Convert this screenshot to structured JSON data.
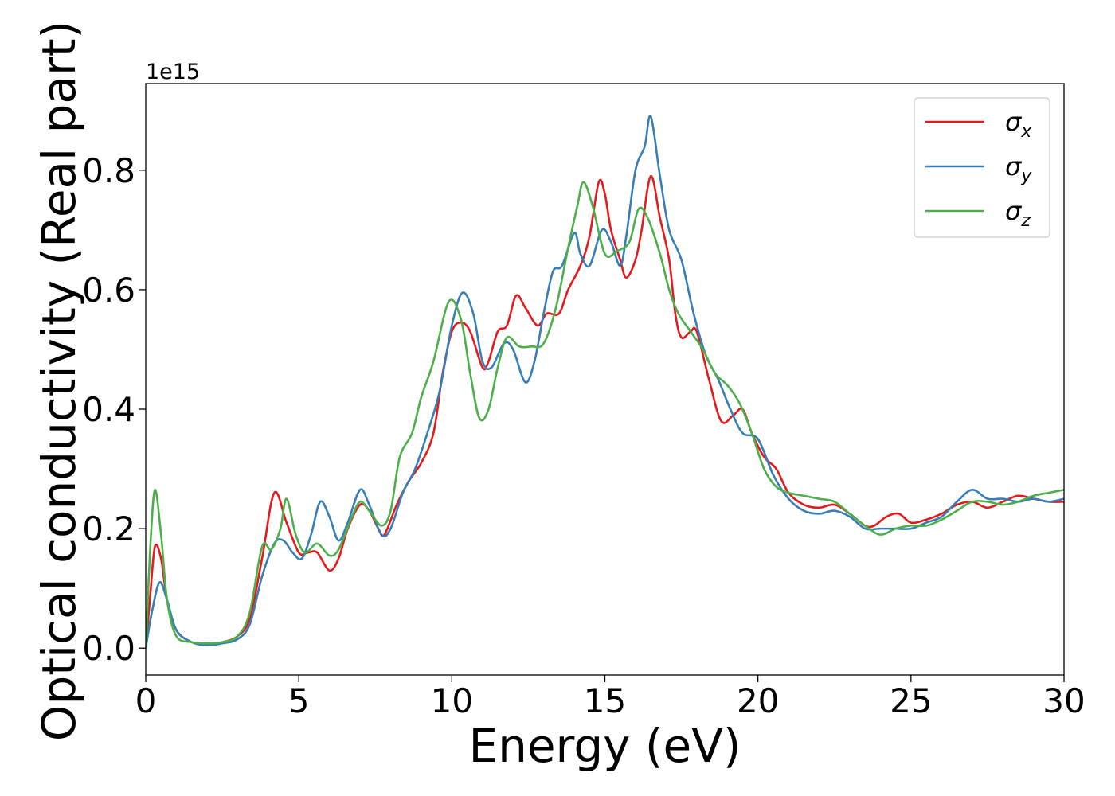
{
  "chart_data": {
    "type": "line",
    "xlabel": "Energy (eV)",
    "ylabel": "Optical conductivity (Real part)",
    "y_offset_label": "1e15",
    "xlim": [
      0,
      30
    ],
    "ylim": [
      -0.045,
      0.945
    ],
    "x_ticks": [
      0,
      5,
      10,
      15,
      20,
      25,
      30
    ],
    "x_tick_labels": [
      "0",
      "5",
      "10",
      "15",
      "20",
      "25",
      "30"
    ],
    "y_ticks": [
      0.0,
      0.2,
      0.4,
      0.6,
      0.8
    ],
    "y_tick_labels": [
      "0.0",
      "0.2",
      "0.4",
      "0.6",
      "0.8"
    ],
    "grid": false,
    "legend_position": "top-right",
    "series": [
      {
        "name": "σ",
        "subscript": "x",
        "color": "#e41a1c",
        "points": [
          [
            0,
            0.0
          ],
          [
            0.15,
            0.09
          ],
          [
            0.3,
            0.17
          ],
          [
            0.5,
            0.15
          ],
          [
            0.7,
            0.08
          ],
          [
            1.0,
            0.03
          ],
          [
            1.5,
            0.01
          ],
          [
            2.0,
            0.007
          ],
          [
            2.5,
            0.01
          ],
          [
            3.0,
            0.02
          ],
          [
            3.4,
            0.05
          ],
          [
            3.8,
            0.15
          ],
          [
            4.2,
            0.26
          ],
          [
            4.6,
            0.21
          ],
          [
            5.0,
            0.16
          ],
          [
            5.3,
            0.16
          ],
          [
            5.6,
            0.16
          ],
          [
            6.0,
            0.13
          ],
          [
            6.3,
            0.15
          ],
          [
            6.6,
            0.2
          ],
          [
            7.0,
            0.24
          ],
          [
            7.3,
            0.23
          ],
          [
            7.6,
            0.2
          ],
          [
            7.8,
            0.19
          ],
          [
            8.2,
            0.24
          ],
          [
            8.6,
            0.28
          ],
          [
            9.0,
            0.31
          ],
          [
            9.4,
            0.36
          ],
          [
            9.7,
            0.46
          ],
          [
            10.0,
            0.53
          ],
          [
            10.3,
            0.545
          ],
          [
            10.6,
            0.53
          ],
          [
            11.0,
            0.47
          ],
          [
            11.2,
            0.48
          ],
          [
            11.5,
            0.53
          ],
          [
            11.8,
            0.54
          ],
          [
            12.1,
            0.59
          ],
          [
            12.4,
            0.57
          ],
          [
            12.8,
            0.54
          ],
          [
            13.1,
            0.56
          ],
          [
            13.5,
            0.56
          ],
          [
            13.8,
            0.6
          ],
          [
            14.2,
            0.64
          ],
          [
            14.5,
            0.69
          ],
          [
            14.8,
            0.78
          ],
          [
            15.0,
            0.76
          ],
          [
            15.2,
            0.7
          ],
          [
            15.5,
            0.65
          ],
          [
            15.7,
            0.62
          ],
          [
            16.0,
            0.65
          ],
          [
            16.2,
            0.7
          ],
          [
            16.5,
            0.79
          ],
          [
            16.8,
            0.72
          ],
          [
            17.1,
            0.65
          ],
          [
            17.3,
            0.56
          ],
          [
            17.5,
            0.52
          ],
          [
            17.8,
            0.53
          ],
          [
            18.0,
            0.53
          ],
          [
            18.4,
            0.45
          ],
          [
            18.8,
            0.38
          ],
          [
            19.2,
            0.39
          ],
          [
            19.5,
            0.4
          ],
          [
            19.8,
            0.36
          ],
          [
            20.2,
            0.32
          ],
          [
            20.6,
            0.3
          ],
          [
            21.0,
            0.26
          ],
          [
            21.5,
            0.24
          ],
          [
            22.0,
            0.235
          ],
          [
            22.5,
            0.24
          ],
          [
            23.0,
            0.225
          ],
          [
            23.5,
            0.205
          ],
          [
            23.8,
            0.205
          ],
          [
            24.2,
            0.22
          ],
          [
            24.6,
            0.225
          ],
          [
            25.0,
            0.21
          ],
          [
            25.5,
            0.215
          ],
          [
            26.0,
            0.225
          ],
          [
            26.5,
            0.24
          ],
          [
            27.0,
            0.245
          ],
          [
            27.5,
            0.235
          ],
          [
            28.0,
            0.245
          ],
          [
            28.5,
            0.255
          ],
          [
            29.0,
            0.25
          ],
          [
            29.5,
            0.245
          ],
          [
            30.0,
            0.245
          ]
        ]
      },
      {
        "name": "σ",
        "subscript": "y",
        "color": "#377eb8",
        "points": [
          [
            0,
            0.0
          ],
          [
            0.2,
            0.06
          ],
          [
            0.45,
            0.11
          ],
          [
            0.7,
            0.08
          ],
          [
            1.0,
            0.03
          ],
          [
            1.5,
            0.01
          ],
          [
            2.0,
            0.005
          ],
          [
            2.5,
            0.008
          ],
          [
            3.0,
            0.015
          ],
          [
            3.4,
            0.04
          ],
          [
            3.8,
            0.12
          ],
          [
            4.2,
            0.175
          ],
          [
            4.5,
            0.18
          ],
          [
            4.8,
            0.16
          ],
          [
            5.1,
            0.15
          ],
          [
            5.4,
            0.19
          ],
          [
            5.7,
            0.245
          ],
          [
            6.0,
            0.22
          ],
          [
            6.3,
            0.18
          ],
          [
            6.6,
            0.21
          ],
          [
            7.0,
            0.265
          ],
          [
            7.3,
            0.24
          ],
          [
            7.7,
            0.19
          ],
          [
            8.0,
            0.2
          ],
          [
            8.4,
            0.26
          ],
          [
            8.8,
            0.3
          ],
          [
            9.2,
            0.36
          ],
          [
            9.6,
            0.43
          ],
          [
            10.0,
            0.54
          ],
          [
            10.35,
            0.595
          ],
          [
            10.7,
            0.56
          ],
          [
            11.0,
            0.48
          ],
          [
            11.3,
            0.47
          ],
          [
            11.7,
            0.51
          ],
          [
            12.0,
            0.5
          ],
          [
            12.4,
            0.445
          ],
          [
            12.7,
            0.48
          ],
          [
            13.0,
            0.56
          ],
          [
            13.3,
            0.63
          ],
          [
            13.6,
            0.64
          ],
          [
            14.0,
            0.695
          ],
          [
            14.2,
            0.66
          ],
          [
            14.5,
            0.64
          ],
          [
            14.9,
            0.7
          ],
          [
            15.2,
            0.68
          ],
          [
            15.5,
            0.64
          ],
          [
            15.7,
            0.69
          ],
          [
            16.0,
            0.8
          ],
          [
            16.3,
            0.84
          ],
          [
            16.5,
            0.89
          ],
          [
            16.8,
            0.79
          ],
          [
            17.1,
            0.7
          ],
          [
            17.5,
            0.65
          ],
          [
            17.9,
            0.56
          ],
          [
            18.3,
            0.49
          ],
          [
            18.7,
            0.45
          ],
          [
            19.1,
            0.4
          ],
          [
            19.5,
            0.36
          ],
          [
            20.0,
            0.35
          ],
          [
            20.5,
            0.29
          ],
          [
            21.0,
            0.25
          ],
          [
            21.5,
            0.23
          ],
          [
            22.0,
            0.225
          ],
          [
            22.5,
            0.23
          ],
          [
            23.0,
            0.22
          ],
          [
            23.5,
            0.2
          ],
          [
            24.0,
            0.2
          ],
          [
            24.5,
            0.2
          ],
          [
            25.0,
            0.2
          ],
          [
            25.5,
            0.21
          ],
          [
            26.0,
            0.22
          ],
          [
            26.5,
            0.245
          ],
          [
            27.0,
            0.265
          ],
          [
            27.5,
            0.25
          ],
          [
            28.0,
            0.25
          ],
          [
            28.5,
            0.245
          ],
          [
            29.0,
            0.25
          ],
          [
            29.5,
            0.245
          ],
          [
            30.0,
            0.25
          ]
        ]
      },
      {
        "name": "σ",
        "subscript": "z",
        "color": "#4daf4a",
        "points": [
          [
            0,
            0.0
          ],
          [
            0.15,
            0.17
          ],
          [
            0.3,
            0.265
          ],
          [
            0.5,
            0.19
          ],
          [
            0.7,
            0.08
          ],
          [
            1.0,
            0.02
          ],
          [
            1.5,
            0.01
          ],
          [
            2.0,
            0.008
          ],
          [
            2.5,
            0.01
          ],
          [
            3.0,
            0.02
          ],
          [
            3.4,
            0.06
          ],
          [
            3.8,
            0.17
          ],
          [
            4.1,
            0.165
          ],
          [
            4.4,
            0.2
          ],
          [
            4.6,
            0.25
          ],
          [
            4.9,
            0.19
          ],
          [
            5.2,
            0.16
          ],
          [
            5.6,
            0.175
          ],
          [
            6.0,
            0.155
          ],
          [
            6.3,
            0.165
          ],
          [
            6.7,
            0.215
          ],
          [
            7.0,
            0.245
          ],
          [
            7.3,
            0.23
          ],
          [
            7.7,
            0.205
          ],
          [
            8.0,
            0.23
          ],
          [
            8.3,
            0.32
          ],
          [
            8.7,
            0.36
          ],
          [
            9.0,
            0.42
          ],
          [
            9.4,
            0.48
          ],
          [
            9.9,
            0.58
          ],
          [
            10.3,
            0.55
          ],
          [
            10.6,
            0.46
          ],
          [
            10.9,
            0.385
          ],
          [
            11.2,
            0.4
          ],
          [
            11.5,
            0.47
          ],
          [
            11.8,
            0.52
          ],
          [
            12.2,
            0.505
          ],
          [
            12.6,
            0.505
          ],
          [
            13.0,
            0.51
          ],
          [
            13.4,
            0.57
          ],
          [
            13.8,
            0.67
          ],
          [
            14.1,
            0.74
          ],
          [
            14.3,
            0.78
          ],
          [
            14.6,
            0.74
          ],
          [
            15.0,
            0.66
          ],
          [
            15.4,
            0.665
          ],
          [
            15.8,
            0.68
          ],
          [
            16.1,
            0.735
          ],
          [
            16.4,
            0.72
          ],
          [
            16.8,
            0.66
          ],
          [
            17.1,
            0.6
          ],
          [
            17.4,
            0.56
          ],
          [
            17.8,
            0.53
          ],
          [
            18.2,
            0.5
          ],
          [
            18.6,
            0.46
          ],
          [
            19.0,
            0.44
          ],
          [
            19.4,
            0.41
          ],
          [
            19.8,
            0.36
          ],
          [
            20.2,
            0.3
          ],
          [
            20.6,
            0.27
          ],
          [
            21.0,
            0.26
          ],
          [
            21.5,
            0.255
          ],
          [
            22.0,
            0.25
          ],
          [
            22.5,
            0.245
          ],
          [
            23.0,
            0.225
          ],
          [
            23.5,
            0.205
          ],
          [
            24.0,
            0.19
          ],
          [
            24.5,
            0.2
          ],
          [
            25.0,
            0.205
          ],
          [
            25.5,
            0.205
          ],
          [
            26.0,
            0.215
          ],
          [
            26.5,
            0.23
          ],
          [
            27.0,
            0.245
          ],
          [
            27.5,
            0.245
          ],
          [
            28.0,
            0.24
          ],
          [
            28.5,
            0.245
          ],
          [
            29.0,
            0.255
          ],
          [
            29.5,
            0.26
          ],
          [
            30.0,
            0.265
          ]
        ]
      }
    ]
  }
}
